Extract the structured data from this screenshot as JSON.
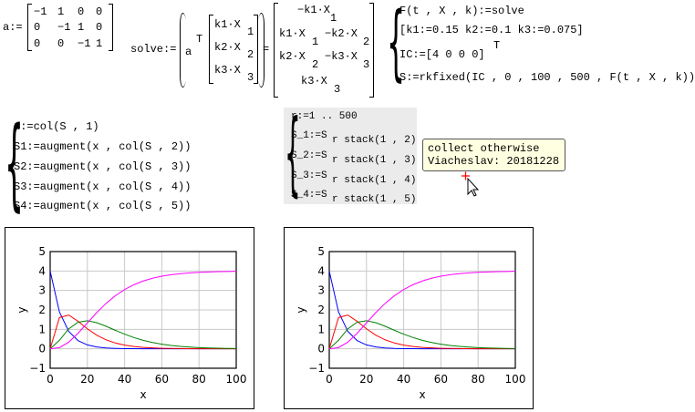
{
  "matrix_a": {
    "label": "a:=",
    "rows": [
      [
        "−1",
        "1",
        "0",
        "0"
      ],
      [
        "0",
        "−1",
        "1",
        "0"
      ],
      [
        "0",
        "0",
        "−1",
        "1"
      ]
    ]
  },
  "solve_def": {
    "label": "solve:=",
    "a": "a",
    "T": "T",
    "vector": [
      [
        "k1·X",
        "1"
      ],
      [
        "k2·X",
        "2"
      ],
      [
        "k3·X",
        "3"
      ]
    ],
    "equals": "=",
    "result": [
      [
        "−k1·X",
        "1",
        "",
        ""
      ],
      [
        "k1·X",
        "1",
        "−k2·X",
        "2"
      ],
      [
        "k2·X",
        "2",
        "−k3·X",
        "3"
      ],
      [
        "k3·X",
        "3",
        "",
        ""
      ]
    ]
  },
  "system": {
    "lines": [
      "F(t , X , k):=solve",
      "[k1:=0.15 k2:=0.1 k3:=0.075]",
      "IC:=[4 0 0 0]",
      "S:=rkfixed(IC , 0 , 100 , 500 , F(t , X , k))"
    ],
    "T": "T"
  },
  "augment": {
    "lines": [
      "x:=col(S , 1)",
      "S1:=augment(x , col(S , 2))",
      "S2:=augment(x , col(S , 3))",
      "S3:=augment(x , col(S , 4))",
      "S4:=augment(x , col(S , 5))"
    ]
  },
  "stack_block": {
    "first": "r:=1 .. 500",
    "lines": [
      [
        "S_1:=S",
        "r stack(1 , 2)"
      ],
      [
        "S_2:=S",
        "r stack(1 , 3)"
      ],
      [
        "S_3:=S",
        "r stack(1 , 4)"
      ],
      [
        "S_4:=S",
        "r stack(1 , 5)"
      ]
    ]
  },
  "tooltip": {
    "line1": "collect otherwise",
    "line2": "Viacheslav: 20181228"
  },
  "chart_data": [
    {
      "type": "line",
      "xlabel": "x",
      "ylabel": "y",
      "xlim": [
        0,
        100
      ],
      "ylim": [
        -1,
        5
      ],
      "grid": true,
      "xticks": [
        "0",
        "20",
        "40",
        "60",
        "80",
        "100"
      ],
      "yticks": [
        "−1",
        "0",
        "1",
        "2",
        "3",
        "4",
        "5"
      ],
      "x": [
        0,
        5,
        10,
        15,
        20,
        25,
        30,
        35,
        40,
        45,
        50,
        55,
        60,
        65,
        70,
        75,
        80,
        85,
        90,
        95,
        100
      ],
      "series": [
        {
          "color": "#0000ff",
          "values": [
            4,
            1.89,
            0.892,
            0.422,
            0.199,
            0.094,
            0.044,
            0.021,
            0.01,
            0.005,
            0.002,
            0.001,
            0,
            0,
            0,
            0,
            0,
            0,
            0,
            0,
            0
          ]
        },
        {
          "color": "#ff0000",
          "values": [
            0,
            1.609,
            1.737,
            1.412,
            1.026,
            0.703,
            0.464,
            0.299,
            0.19,
            0.119,
            0.074,
            0.046,
            0.028,
            0.017,
            0.011,
            0.007,
            0.004,
            0.002,
            0.001,
            0.001,
            0.001
          ]
        },
        {
          "color": "#008000",
          "values": [
            0,
            0.44,
            1.028,
            1.367,
            1.442,
            1.344,
            1.161,
            0.951,
            0.755,
            0.58,
            0.437,
            0.326,
            0.238,
            0.173,
            0.124,
            0.089,
            0.063,
            0.045,
            0.032,
            0.022,
            0.015
          ]
        },
        {
          "color": "#ff00ff",
          "values": [
            0,
            0.061,
            0.343,
            0.799,
            1.333,
            1.859,
            2.331,
            2.729,
            3.045,
            3.296,
            3.487,
            3.627,
            3.734,
            3.81,
            3.865,
            3.904,
            3.933,
            3.953,
            3.966,
            3.977,
            3.984
          ]
        }
      ]
    },
    {
      "type": "line",
      "xlabel": "x",
      "ylabel": "y",
      "xlim": [
        0,
        100
      ],
      "ylim": [
        -1,
        5
      ],
      "grid": true,
      "xticks": [
        "0",
        "20",
        "40",
        "60",
        "80",
        "100"
      ],
      "yticks": [
        "−1",
        "0",
        "1",
        "2",
        "3",
        "4",
        "5"
      ],
      "x": [
        0,
        5,
        10,
        15,
        20,
        25,
        30,
        35,
        40,
        45,
        50,
        55,
        60,
        65,
        70,
        75,
        80,
        85,
        90,
        95,
        100
      ],
      "series": [
        {
          "color": "#0000ff",
          "values": [
            4,
            1.89,
            0.892,
            0.422,
            0.199,
            0.094,
            0.044,
            0.021,
            0.01,
            0.005,
            0.002,
            0.001,
            0,
            0,
            0,
            0,
            0,
            0,
            0,
            0,
            0
          ]
        },
        {
          "color": "#ff0000",
          "values": [
            0,
            1.609,
            1.737,
            1.412,
            1.026,
            0.703,
            0.464,
            0.299,
            0.19,
            0.119,
            0.074,
            0.046,
            0.028,
            0.017,
            0.011,
            0.007,
            0.004,
            0.002,
            0.001,
            0.001,
            0.001
          ]
        },
        {
          "color": "#008000",
          "values": [
            0,
            0.44,
            1.028,
            1.367,
            1.442,
            1.344,
            1.161,
            0.951,
            0.755,
            0.58,
            0.437,
            0.326,
            0.238,
            0.173,
            0.124,
            0.089,
            0.063,
            0.045,
            0.032,
            0.022,
            0.015
          ]
        },
        {
          "color": "#ff00ff",
          "values": [
            0,
            0.061,
            0.343,
            0.799,
            1.333,
            1.859,
            2.331,
            2.729,
            3.045,
            3.296,
            3.487,
            3.627,
            3.734,
            3.81,
            3.865,
            3.904,
            3.933,
            3.953,
            3.966,
            3.977,
            3.984
          ]
        }
      ]
    }
  ]
}
